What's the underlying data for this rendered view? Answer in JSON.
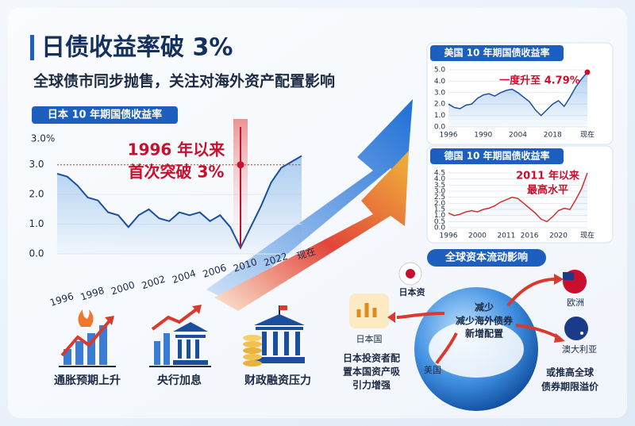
{
  "header": {
    "title": "日债收益率破 3%",
    "subtitle": "全球债市同步抛售，关注对海外资产配置影响"
  },
  "chart_data": [
    {
      "type": "line",
      "title": "日本 10 年期国债收益率",
      "y_top_label": "3.0%",
      "color": "#1b4f9e",
      "categories": [
        "1996",
        null,
        null,
        "1998",
        null,
        null,
        "2000",
        null,
        null,
        "2002",
        null,
        null,
        "2004",
        null,
        null,
        "2006",
        null,
        null,
        "2010",
        null,
        null,
        "2022",
        null,
        null,
        "现在"
      ],
      "values": [
        2.7,
        2.6,
        2.3,
        1.9,
        1.8,
        1.4,
        1.3,
        0.9,
        1.3,
        1.5,
        1.2,
        1.1,
        1.4,
        1.3,
        1.4,
        1.1,
        1.3,
        0.9,
        0.2,
        0.9,
        1.6,
        2.4,
        2.9,
        3.1,
        3.3
      ],
      "ylim": [
        0,
        3.5
      ],
      "yticks": [
        {
          "value": 0,
          "label": "0.0"
        },
        {
          "value": 1,
          "label": "1.0"
        },
        {
          "value": 2,
          "label": "2.0"
        },
        {
          "value": 3,
          "label": "3.0"
        }
      ],
      "reference_line": 3,
      "annotation": [
        "1996 年以来",
        "首次突破 3%"
      ]
    },
    {
      "type": "line",
      "title": "美国 10 年期国债收益率",
      "color": "#1b4f9e",
      "categories": [
        "1996",
        null,
        null,
        null,
        null,
        null,
        "1990",
        null,
        null,
        null,
        null,
        null,
        "2004",
        null,
        null,
        null,
        null,
        null,
        "2018",
        null,
        null,
        null,
        null,
        null,
        "现在"
      ],
      "values": [
        2.0,
        1.7,
        1.6,
        1.9,
        2.0,
        2.5,
        2.8,
        2.9,
        2.7,
        3.0,
        3.2,
        3.3,
        3.0,
        2.6,
        2.2,
        1.5,
        1.0,
        1.5,
        2.0,
        2.3,
        1.8,
        2.6,
        3.5,
        4.2,
        4.79
      ],
      "ylim": [
        0,
        5
      ],
      "yticks": [
        {
          "value": 0,
          "label": "0.0"
        },
        {
          "value": 1,
          "label": "1.0"
        },
        {
          "value": 2,
          "label": "2.0"
        },
        {
          "value": 3,
          "label": "3.0"
        },
        {
          "value": 4,
          "label": "4.0"
        },
        {
          "value": 5,
          "label": "5.0"
        }
      ],
      "annotation": [
        "一度升至 4.79%"
      ]
    },
    {
      "type": "line",
      "title": "德国 10 年期国债收益率",
      "color": "#d0312d",
      "categories": [
        "1996",
        null,
        null,
        null,
        null,
        "2000",
        null,
        null,
        null,
        null,
        "2011",
        null,
        null,
        null,
        "2016",
        null,
        null,
        null,
        null,
        "2020",
        null,
        null,
        null,
        null,
        "现在"
      ],
      "values": [
        1.2,
        1.0,
        1.1,
        1.3,
        1.4,
        1.3,
        1.5,
        1.6,
        1.8,
        2.1,
        2.3,
        2.5,
        2.4,
        2.0,
        1.6,
        1.2,
        0.7,
        0.5,
        0.9,
        1.4,
        1.6,
        1.5,
        2.3,
        3.2,
        4.5
      ],
      "ylim": [
        0,
        4.5
      ],
      "yticks": [
        {
          "value": 0,
          "label": "0.0"
        },
        0.5,
        {
          "value": 1,
          "label": "1.0"
        },
        1.5,
        {
          "value": 2,
          "label": "2.0"
        },
        2.5,
        {
          "value": 3,
          "label": "3.0"
        },
        3.5,
        {
          "value": 4,
          "label": "4.0"
        },
        4.5
      ],
      "annotation": [
        "2011 年以来",
        "最高水平"
      ]
    }
  ],
  "icons": [
    "通胀预期上升",
    "央行加息",
    "财政融资压力"
  ],
  "flow": {
    "title": "全球资本流动影响",
    "source": "日本资",
    "center": [
      "减少",
      "减少海外债券",
      "新增配置"
    ],
    "home": "日本国",
    "home_note": [
      "日本投资者配",
      "置本国资产吸",
      "引力增强"
    ],
    "us": "美国",
    "europe": "欧洲",
    "australia": "澳大利亚",
    "note": [
      "或推高全球",
      "债券期限溢价"
    ]
  }
}
